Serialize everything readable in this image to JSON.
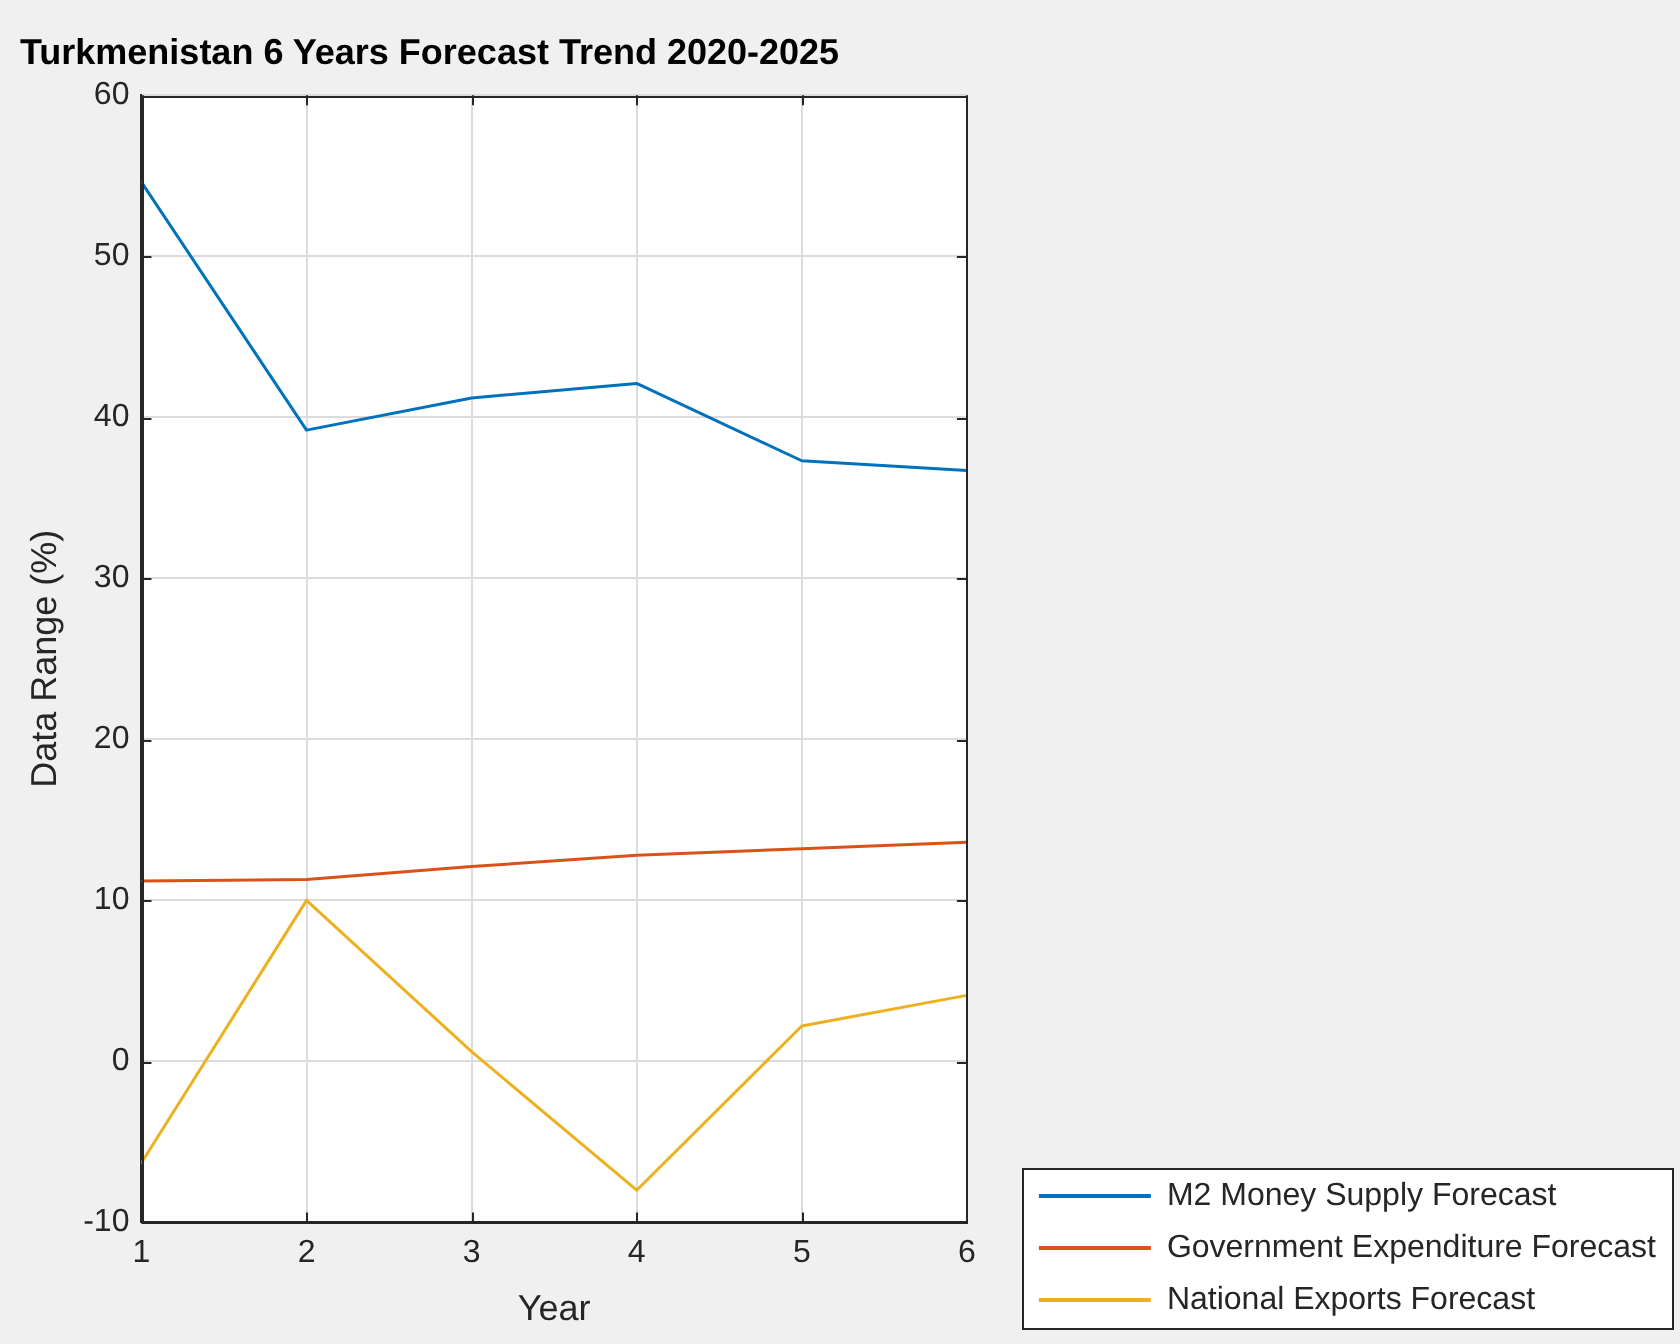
{
  "chart_data": {
    "type": "line",
    "title": "Turkmenistan 6 Years Forecast Trend 2020-2025",
    "xlabel": "Year",
    "ylabel": "Data Range (%)",
    "x": [
      1,
      2,
      3,
      4,
      5,
      6
    ],
    "series": [
      {
        "name": "M2 Money Supply Forecast",
        "color": "#0072bd",
        "values": [
          54.6,
          39.2,
          41.2,
          42.1,
          37.3,
          36.7
        ]
      },
      {
        "name": "Government Expenditure Forecast",
        "color": "#d95319",
        "values": [
          11.2,
          11.3,
          12.1,
          12.8,
          13.2,
          13.6
        ]
      },
      {
        "name": "National Exports Forecast",
        "color": "#edb120",
        "values": [
          -6.3,
          10.0,
          0.6,
          -8.0,
          2.2,
          4.1
        ]
      }
    ],
    "xlim": [
      1,
      6
    ],
    "xticks": [
      1,
      2,
      3,
      4,
      5,
      6
    ],
    "ylim": [
      -10,
      60
    ],
    "yticks": [
      -10,
      0,
      10,
      20,
      30,
      40,
      50,
      60
    ],
    "grid": true,
    "legend": "bottom right"
  }
}
